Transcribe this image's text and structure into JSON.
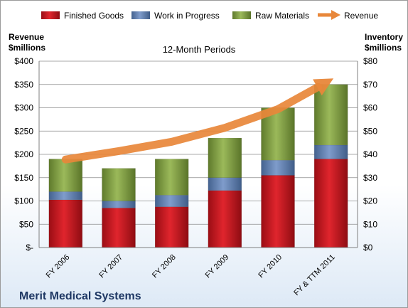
{
  "chart_data": {
    "type": "bar",
    "subtitle": "12-Month Periods",
    "company": "Merit Medical Systems",
    "ylabel_left": [
      "Revenue",
      "$millions"
    ],
    "ylabel_right": [
      "Inventory",
      "$millions"
    ],
    "categories": [
      "FY 2006",
      "FY 2007",
      "FY 2008",
      "FY 2009",
      "FY 2010",
      "FY & TTM 2011"
    ],
    "ylim_left": [
      0,
      400
    ],
    "ylim_right": [
      0,
      80
    ],
    "yticks_left": [
      "$-",
      "$50",
      "$100",
      "$150",
      "$200",
      "$250",
      "$300",
      "$350",
      "$400"
    ],
    "yticks_right": [
      "$0",
      "$10",
      "$20",
      "$30",
      "$40",
      "$50",
      "$60",
      "$70",
      "$80"
    ],
    "stacked": true,
    "series": [
      {
        "name": "Finished Goods",
        "axis": "right",
        "color": "#c0161e",
        "values": [
          20.5,
          17,
          17.5,
          24.5,
          31,
          38
        ]
      },
      {
        "name": "Work in Progress",
        "axis": "right",
        "color": "#5e7fb0",
        "values": [
          3.5,
          3,
          5,
          5.5,
          6.5,
          6
        ]
      },
      {
        "name": "Raw Materials",
        "axis": "right",
        "color": "#7a9a3c",
        "values": [
          14,
          14,
          15.5,
          17,
          22.5,
          26
        ]
      },
      {
        "name": "Revenue",
        "axis": "left",
        "kind": "arrow",
        "color": "#e8873a",
        "values": [
          189,
          207,
          227,
          257,
          297,
          360
        ]
      }
    ],
    "grid": true,
    "legend": "top"
  }
}
